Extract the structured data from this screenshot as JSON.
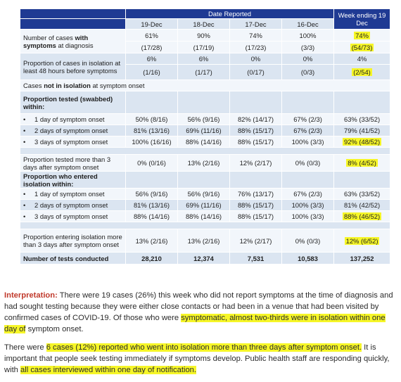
{
  "table": {
    "header_group": "Date Reported",
    "week_header": "Week ending 19 Dec",
    "columns": [
      "19-Dec",
      "18-Dec",
      "17-Dec",
      "16-Dec"
    ],
    "rows": {
      "symptoms": {
        "label_pre": "Number of cases ",
        "label_bold1": "with",
        "label_bold2": "symptoms",
        "label_post": " at diagnosis",
        "pct": [
          "61%",
          "90%",
          "74%",
          "100%"
        ],
        "week_pct": "74%",
        "frac": [
          "(17/28)",
          "(17/19)",
          "(17/23)",
          "(3/3)"
        ],
        "week_frac": "(54/73)"
      },
      "isolation48": {
        "label": "Proportion of cases in isolation at least 48 hours before symptoms",
        "pct": [
          "6%",
          "6%",
          "0%",
          "0%"
        ],
        "week_pct": "4%",
        "frac": [
          "(1/16)",
          "(1/17)",
          "(0/17)",
          "(0/3)"
        ],
        "week_frac": "(2/54)"
      },
      "not_isolation": {
        "pre": "Cases ",
        "bold": "not in isolation",
        "post": " at symptom onset"
      },
      "tested_heading": "Proportion tested (swabbed) within:",
      "tested": [
        {
          "label": "1 day of symptom onset",
          "values": [
            "50% (8/16)",
            "56% (9/16)",
            "82% (14/17)",
            "67% (2/3)"
          ],
          "week": "63% (33/52)"
        },
        {
          "label": "2 days of symptom onset",
          "values": [
            "81% (13/16)",
            "69% (11/16)",
            "88% (15/17)",
            "67% (2/3)"
          ],
          "week": "79% (41/52)"
        },
        {
          "label": "3 days of symptom onset",
          "values": [
            "100% (16/16)",
            "88% (14/16)",
            "88% (15/17)",
            "100% (3/3)"
          ],
          "week": "92% (48/52)"
        }
      ],
      "tested_more3": {
        "label": "Proportion tested more than 3 days after symptom onset",
        "values": [
          "0% (0/16)",
          "13% (2/16)",
          "12% (2/17)",
          "0% (0/3)"
        ],
        "week": "8% (4/52)"
      },
      "entered_heading": "Proportion who entered isolation within:",
      "entered": [
        {
          "label": "1 day of symptom onset",
          "values": [
            "56% (9/16)",
            "56% (9/16)",
            "76% (13/17)",
            "67% (2/3)"
          ],
          "week": "63% (33/52)"
        },
        {
          "label": "2 days of symptom onset",
          "values": [
            "81% (13/16)",
            "69% (11/16)",
            "88% (15/17)",
            "100% (3/3)"
          ],
          "week": "81% (42/52)"
        },
        {
          "label": "3 days of symptom onset",
          "values": [
            "88% (14/16)",
            "88% (14/16)",
            "88% (15/17)",
            "100% (3/3)"
          ],
          "week": "88% (46/52)"
        }
      ],
      "entering_more3": {
        "label": "Proportion entering isolation more than 3 days after symptom onset",
        "values": [
          "13% (2/16)",
          "13% (2/16)",
          "12% (2/17)",
          "0% (0/3)"
        ],
        "week": "12% (6/52)"
      },
      "tests": {
        "label": "Number of tests conducted",
        "values": [
          "28,210",
          "12,374",
          "7,531",
          "10,583"
        ],
        "week": "137,252"
      }
    }
  },
  "interpretation": {
    "label": "Interpretation:",
    "p1_a": " There were 19 cases (26%) this week who did not report symptoms at the time of diagnosis and had sought testing because they were either close contacts or had been in a venue that had been visited by confirmed cases of COVID-19. Of those who were ",
    "p1_hl": "symptomatic, almost two-thirds were in isolation within one day of",
    "p1_b": " symptom onset.",
    "p2_a": "There were ",
    "p2_hl1": "6 cases (12%) reported who went into isolation more than three days after symptom onset.",
    "p2_b": " It is important that people seek testing immediately if symptoms develop. Public health staff are responding quickly, with ",
    "p2_hl2": "all cases interviewed within one day of notification."
  }
}
